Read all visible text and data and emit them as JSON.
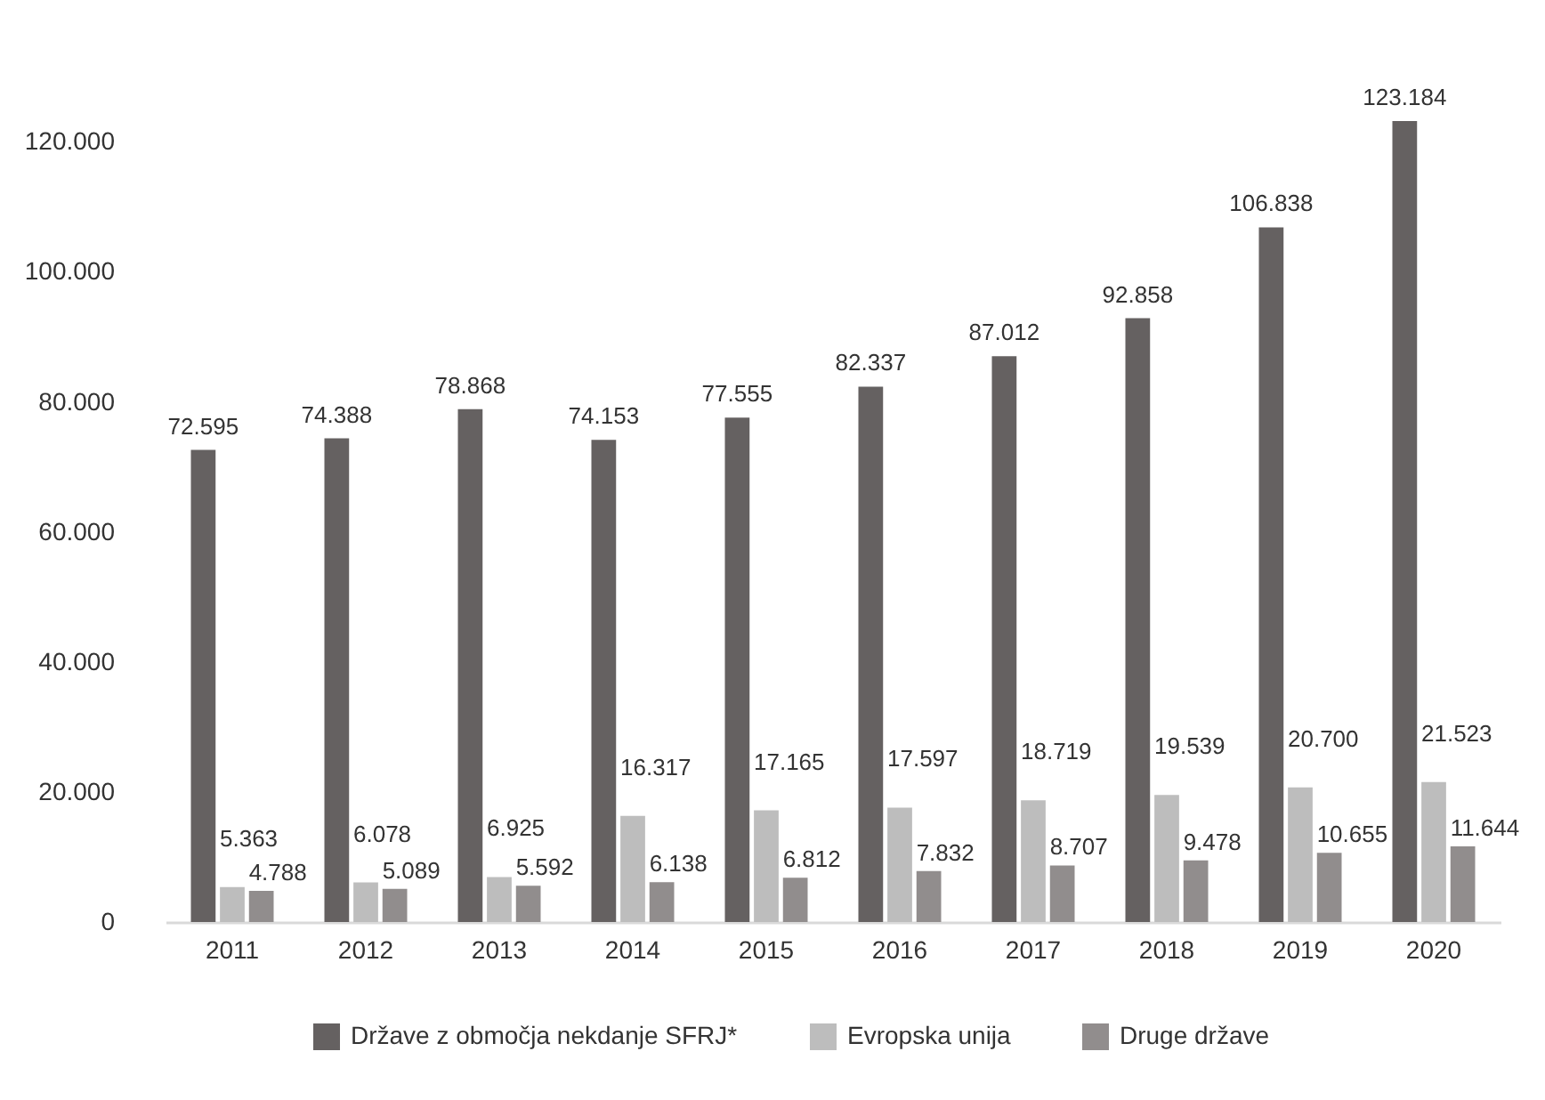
{
  "chart_data": {
    "type": "bar",
    "categories": [
      "2011",
      "2012",
      "2013",
      "2014",
      "2015",
      "2016",
      "2017",
      "2018",
      "2019",
      "2020"
    ],
    "series": [
      {
        "name": "Države z območja nekdanje SFRJ*",
        "color": "#656161",
        "values": [
          72595,
          74388,
          78868,
          74153,
          77555,
          82337,
          87012,
          92858,
          106838,
          123184
        ],
        "value_labels": [
          "72.595",
          "74.388",
          "78.868",
          "74.153",
          "77.555",
          "82.337",
          "87.012",
          "92.858",
          "106.838",
          "123.184"
        ]
      },
      {
        "name": "Evropska unija",
        "color": "#bdbdbd",
        "values": [
          5363,
          6078,
          6925,
          16317,
          17165,
          17597,
          18719,
          19539,
          20700,
          21523
        ],
        "value_labels": [
          "5.363",
          "6.078",
          "6.925",
          "16.317",
          "17.165",
          "17.597",
          "18.719",
          "19.539",
          "20.700",
          "21.523"
        ]
      },
      {
        "name": "Druge države",
        "color": "#918d8d",
        "values": [
          4788,
          5089,
          5592,
          6138,
          6812,
          7832,
          8707,
          9478,
          10655,
          11644
        ],
        "value_labels": [
          "4.788",
          "5.089",
          "5.592",
          "6.138",
          "6.812",
          "7.832",
          "8.707",
          "9.478",
          "10.655",
          "11.644"
        ]
      }
    ],
    "ylim": [
      0,
      123184
    ],
    "yticks": [
      0,
      {
        "value": 20000,
        "label": "20.000"
      },
      {
        "value": 40000,
        "label": "40.000"
      },
      {
        "value": 60000,
        "label": "60.000"
      },
      {
        "value": 80000,
        "label": "80.000"
      },
      {
        "value": 100000,
        "label": "100.000"
      },
      {
        "value": 120000,
        "label": "120.000"
      }
    ],
    "legend": "bottom"
  }
}
